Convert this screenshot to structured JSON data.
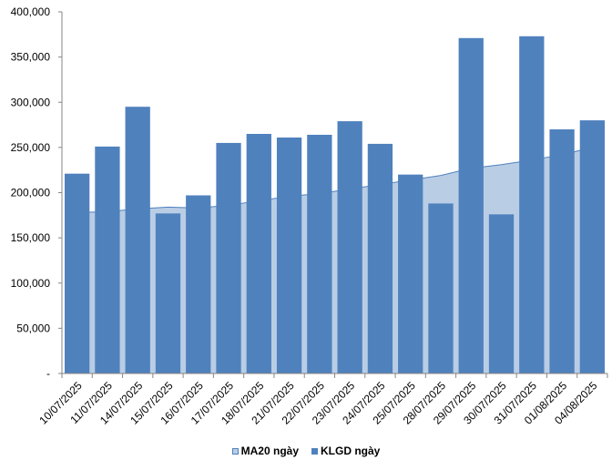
{
  "chart_data": {
    "type": "bar",
    "categories": [
      "10/07/2025",
      "11/07/2025",
      "14/07/2025",
      "15/07/2025",
      "16/07/2025",
      "17/07/2025",
      "18/07/2025",
      "21/07/2025",
      "22/07/2025",
      "23/07/2025",
      "24/07/2025",
      "25/07/2025",
      "28/07/2025",
      "29/07/2025",
      "30/07/2025",
      "31/07/2025",
      "01/08/2025",
      "04/08/2025"
    ],
    "series": [
      {
        "name": "KLGD ngày",
        "type": "bar",
        "color": "#4f81bd",
        "values": [
          221000,
          251000,
          295000,
          177000,
          197000,
          255000,
          265000,
          261000,
          264000,
          279000,
          254000,
          220000,
          188000,
          371000,
          176000,
          373000,
          270000,
          280000
        ]
      },
      {
        "name": "MA20 ngày",
        "type": "area",
        "color": "#b9cde5",
        "line_color": "#4f81bd",
        "values": [
          178000,
          179000,
          182000,
          184000,
          183000,
          186000,
          191000,
          196000,
          199000,
          204000,
          209000,
          214000,
          219000,
          227000,
          231000,
          236000,
          242000,
          250000
        ]
      }
    ],
    "yticks": [
      "-",
      "50,000",
      "100,000",
      "150,000",
      "200,000",
      "250,000",
      "300,000",
      "350,000",
      "400,000"
    ],
    "ylim": [
      0,
      400000
    ],
    "legend_position": "bottom",
    "grid": false
  }
}
